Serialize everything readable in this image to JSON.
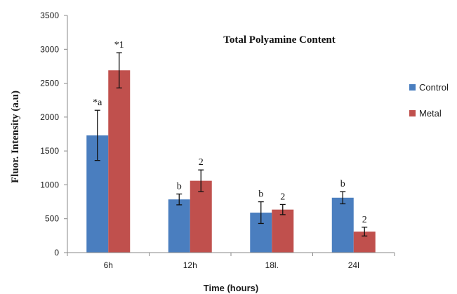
{
  "chart_data": {
    "type": "bar",
    "title": "Total Polyamine Content",
    "xlabel": "Time (hours)",
    "ylabel": "Fluor. Intensity (a.u)",
    "categories": [
      "6h",
      "12h",
      "18l.",
      "24l"
    ],
    "ylim": [
      0,
      3500
    ],
    "yticks": [
      0,
      500,
      1000,
      1500,
      2000,
      2500,
      3000,
      3500
    ],
    "grid": false,
    "legend_position": "right",
    "series": [
      {
        "name": "Control",
        "color": "#4a7ebf",
        "values": [
          1730,
          785,
          590,
          810
        ],
        "errors": [
          370,
          80,
          160,
          90
        ],
        "labels": [
          "*a",
          "b",
          "b",
          "b"
        ]
      },
      {
        "name": "Metal",
        "color": "#c0504d",
        "values": [
          2690,
          1060,
          635,
          310
        ],
        "errors": [
          260,
          160,
          75,
          65
        ],
        "labels": [
          "*1",
          "2",
          "2",
          "2"
        ]
      }
    ]
  }
}
